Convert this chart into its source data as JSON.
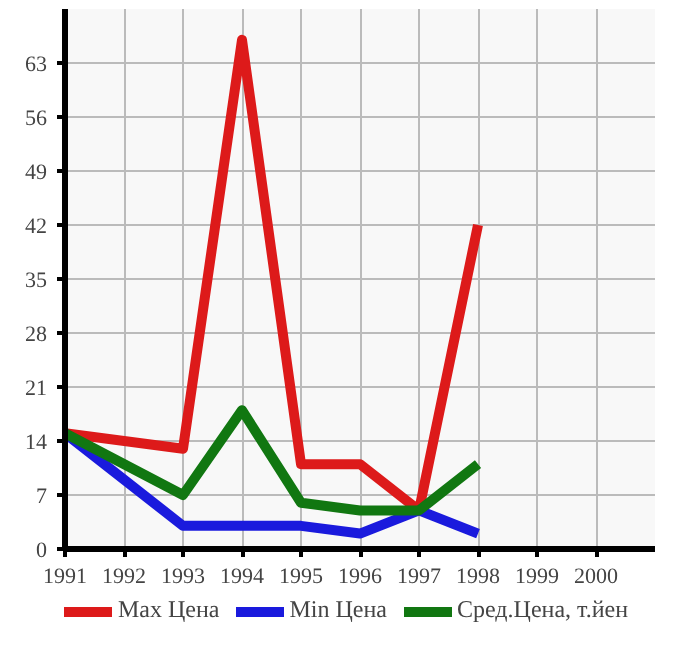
{
  "chart_data": {
    "type": "line",
    "x": [
      1991,
      1993,
      1994,
      1995,
      1996,
      1997,
      1998
    ],
    "series": [
      {
        "name": "Max Цена",
        "color": "#dd1a1a",
        "values": [
          15,
          13,
          66,
          11,
          11,
          5,
          42
        ]
      },
      {
        "name": "Min Цена",
        "color": "#1a1add",
        "values": [
          15,
          3,
          3,
          3,
          2,
          5,
          2
        ]
      },
      {
        "name": "Сред.Цена, т.йен",
        "color": "#117711",
        "values": [
          15,
          7,
          18,
          6,
          5,
          5,
          11
        ]
      }
    ],
    "xlim": [
      1991,
      2001
    ],
    "xticks": [
      1991,
      1992,
      1993,
      1994,
      1995,
      1996,
      1997,
      1998,
      1999,
      2000
    ],
    "ylim": [
      0,
      70
    ],
    "yticks": [
      0,
      7,
      14,
      21,
      28,
      35,
      42,
      49,
      56,
      63
    ],
    "grid": true,
    "legend": "bottom",
    "marker": "none",
    "line_style": "solid"
  }
}
